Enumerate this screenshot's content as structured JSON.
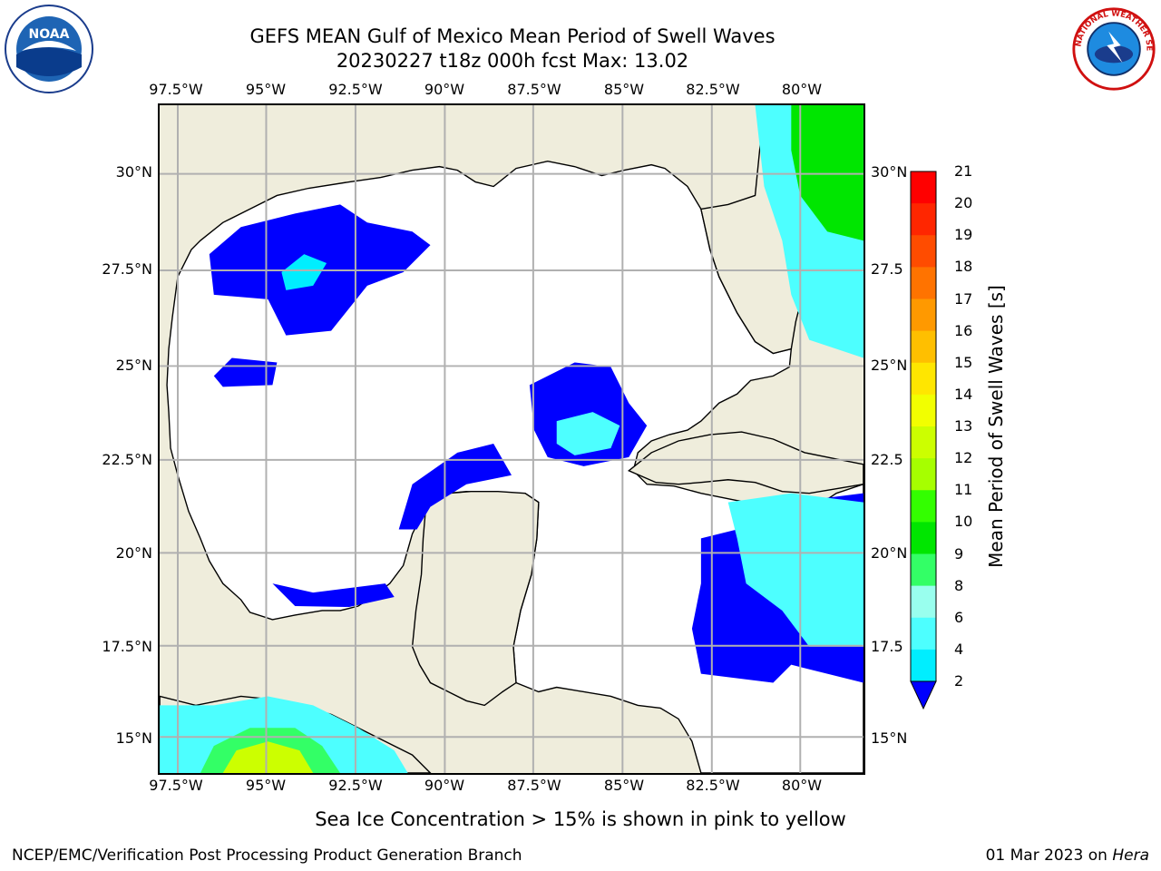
{
  "header": {
    "title_line1": "GEFS MEAN Gulf of Mexico Mean Period of Swell Waves",
    "title_line2": "20230227 t18z 000h fcst   Max: 13.02"
  },
  "logos": {
    "left": {
      "name": "noaa-logo",
      "text": "NOAA"
    },
    "right": {
      "name": "nws-logo",
      "text": "NATIONAL WEATHER SERVICE"
    }
  },
  "map": {
    "lon_labels": [
      "97.5°W",
      "95°W",
      "92.5°W",
      "90°W",
      "87.5°W",
      "85°W",
      "82.5°W",
      "80°W"
    ],
    "lat_labels_left": [
      "30°N",
      "27.5°N",
      "25°N",
      "22.5°N",
      "20°N",
      "17.5°N",
      "15°N"
    ],
    "lat_labels_right": [
      "30°N",
      "27.5",
      "25°N",
      "22.5",
      "20°N",
      "17.5",
      "15°N"
    ],
    "land_color": "#efeddc",
    "water_color": "#ffffff",
    "grid_color": "#b0b0b0"
  },
  "colorbar": {
    "label": "Mean Period of Swell Waves [s]",
    "ticks": [
      "21",
      "20",
      "19",
      "18",
      "17",
      "16",
      "15",
      "14",
      "13",
      "12",
      "11",
      "10",
      "9",
      "8",
      "6",
      "4",
      "2"
    ],
    "colors": [
      "#ff0000",
      "#ff2600",
      "#ff4c00",
      "#ff7300",
      "#ff9900",
      "#ffbf00",
      "#ffe600",
      "#f2ff00",
      "#ccff00",
      "#a6ff00",
      "#33ff00",
      "#00e600",
      "#33ff66",
      "#99ffee",
      "#4dffff",
      "#00eeff",
      "#0073ff"
    ],
    "extend_color": "#0000ff"
  },
  "caption": "Sea Ice Concentration > 15% is shown in pink to yellow",
  "footer": {
    "left": "NCEP/EMC/Verification Post Processing Product Generation Branch",
    "right_prefix": "01 Mar 2023 on ",
    "right_machine": "Hera"
  }
}
